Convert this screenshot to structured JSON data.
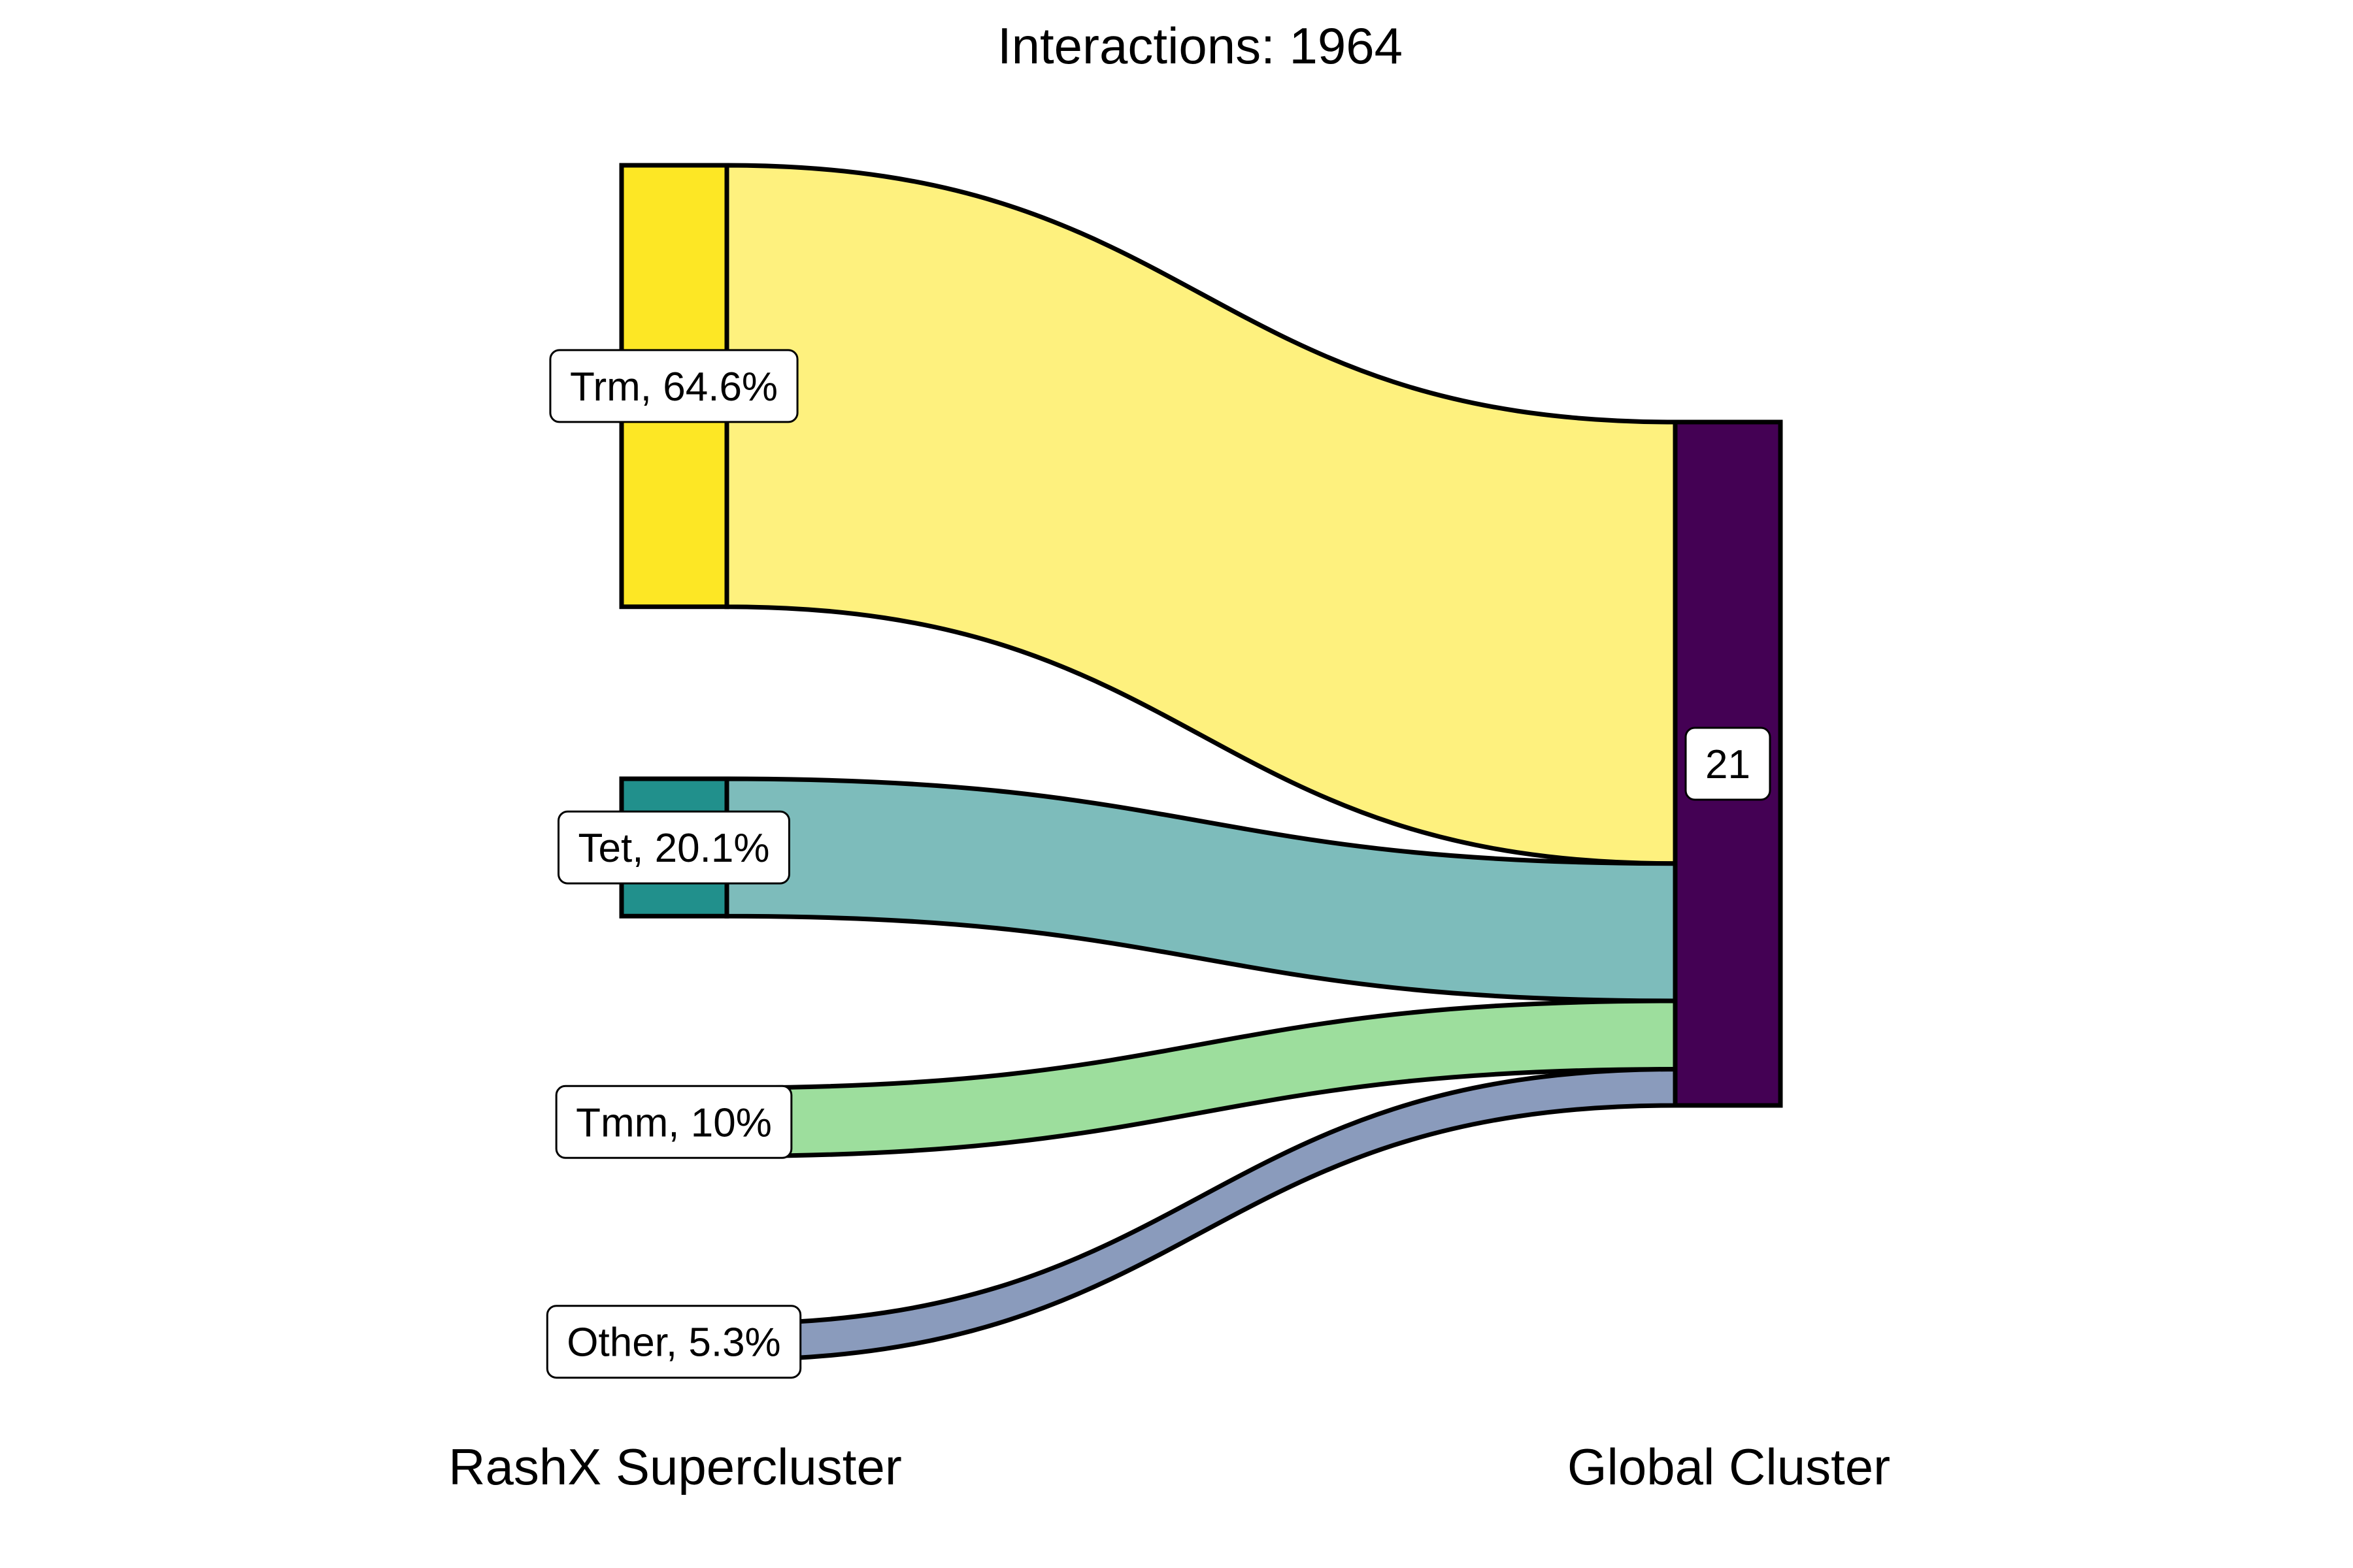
{
  "chart_data": {
    "type": "sankey",
    "title": "Interactions: 1964",
    "axes": [
      "RashX Supercluster",
      "Global Cluster"
    ],
    "left_nodes": [
      {
        "name": "Trm",
        "label": "Trm, 64.6%",
        "percent": 64.6,
        "node_color": "#FDE725",
        "flow_color": "#FEF17E"
      },
      {
        "name": "Tet",
        "label": "Tet, 20.1%",
        "percent": 20.1,
        "node_color": "#21908C",
        "flow_color": "#7DBCBB"
      },
      {
        "name": "Tmm",
        "label": "Tmm, 10%",
        "percent": 10,
        "node_color": "#9DDE9D",
        "flow_color": "#9DDE9D"
      },
      {
        "name": "Other",
        "label": "Other, 5.3%",
        "percent": 5.3,
        "node_color": "#8A9BBC",
        "flow_color": "#8A9BBC"
      }
    ],
    "right_nodes": [
      {
        "name": "21",
        "label": "21",
        "node_color": "#440154"
      }
    ],
    "flows": [
      {
        "from": "Trm",
        "to": "21",
        "percent": 64.6
      },
      {
        "from": "Tet",
        "to": "21",
        "percent": 20.1
      },
      {
        "from": "Tmm",
        "to": "21",
        "percent": 10
      },
      {
        "from": "Other",
        "to": "21",
        "percent": 5.3
      }
    ]
  }
}
